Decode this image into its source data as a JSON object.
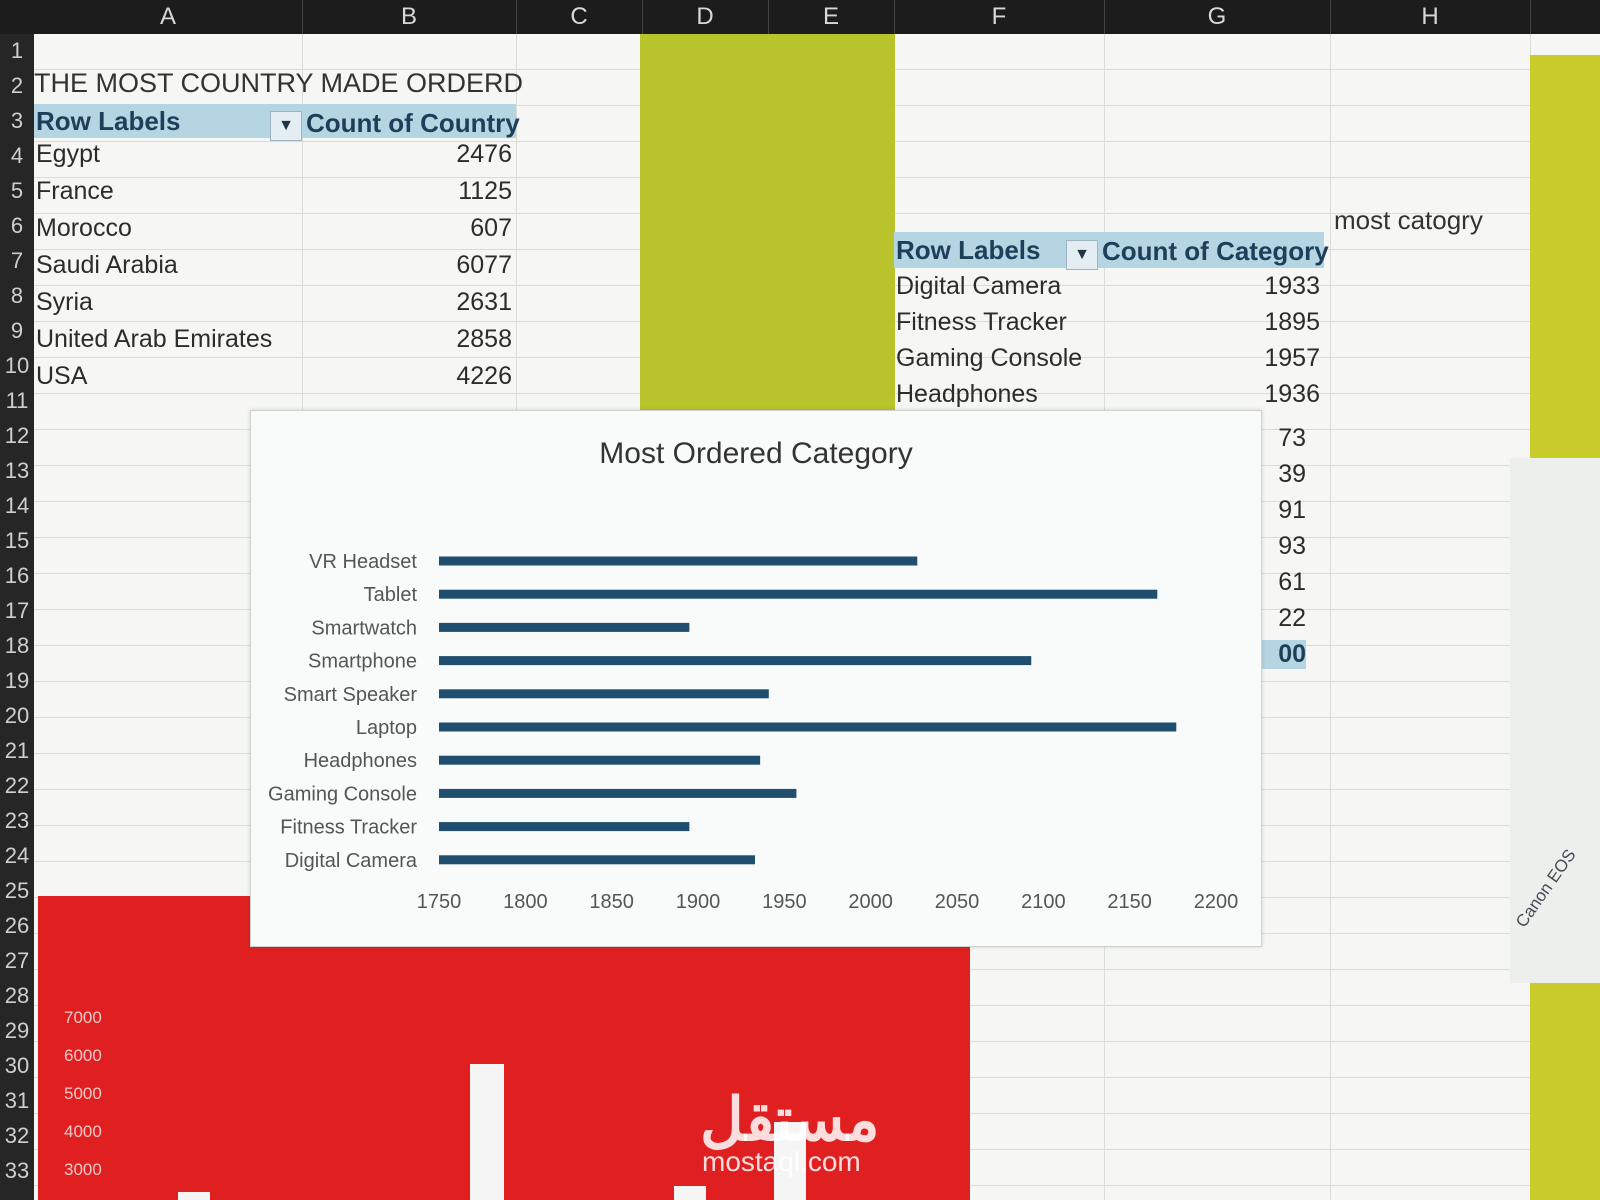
{
  "columns": [
    "A",
    "B",
    "C",
    "D",
    "E",
    "F",
    "G",
    "H"
  ],
  "rows": [
    "1",
    "2",
    "3",
    "4",
    "5",
    "6",
    "7",
    "8",
    "9",
    "10",
    "11",
    "12",
    "13",
    "14",
    "15",
    "16",
    "17",
    "18",
    "19",
    "20",
    "21",
    "22",
    "23",
    "24",
    "25",
    "26",
    "27",
    "28",
    "29",
    "30",
    "31",
    "32",
    "33"
  ],
  "pivot_country": {
    "title": "THE MOST COUNTRY MADE ORDERD",
    "header_label": "Row Labels",
    "header_value": "Count of Country",
    "rows": [
      {
        "label": "Egypt",
        "value": "2476"
      },
      {
        "label": "France",
        "value": "1125"
      },
      {
        "label": "Morocco",
        "value": "607"
      },
      {
        "label": "Saudi Arabia",
        "value": "6077"
      },
      {
        "label": "Syria",
        "value": "2631"
      },
      {
        "label": "United Arab Emirates",
        "value": "2858"
      },
      {
        "label": "USA",
        "value": "4226"
      }
    ]
  },
  "pivot_category": {
    "note": "most catogry",
    "header_label": "Row Labels",
    "header_value": "Count of Category",
    "rows": [
      {
        "label": "Digital Camera",
        "value": "1933"
      },
      {
        "label": "Fitness Tracker",
        "value": "1895"
      },
      {
        "label": "Gaming Console",
        "value": "1957"
      },
      {
        "label": "Headphones",
        "value": "1936"
      }
    ],
    "partial_values": [
      "73",
      "39",
      "91",
      "93",
      "61",
      "22",
      "00"
    ]
  },
  "card_text": "Canon EOS",
  "red_chart_yticks": [
    "7000",
    "6000",
    "5000",
    "4000",
    "3000"
  ],
  "watermark": {
    "arabic": "مستقل",
    "latin": "mostaql.com"
  },
  "chart_data": {
    "type": "bar",
    "orientation": "horizontal",
    "title": "Most Ordered Category",
    "categories": [
      "VR Headset",
      "Tablet",
      "Smartwatch",
      "Smartphone",
      "Smart Speaker",
      "Laptop",
      "Headphones",
      "Gaming Console",
      "Fitness Tracker",
      "Digital Camera"
    ],
    "values": [
      2027,
      2166,
      1895,
      2093,
      1941,
      2177,
      1936,
      1957,
      1895,
      1933
    ],
    "xlim": [
      1750,
      2200
    ],
    "xticks": [
      "1750",
      "1800",
      "1850",
      "1900",
      "1950",
      "2000",
      "2050",
      "2100",
      "2150",
      "2200"
    ],
    "bar_color": "#1f4e6e",
    "grid": false,
    "legend": "none"
  },
  "colors": {
    "red_block": "#e02020",
    "yellow": "#b9c42d",
    "pivot_header": "#b6d5e2"
  }
}
